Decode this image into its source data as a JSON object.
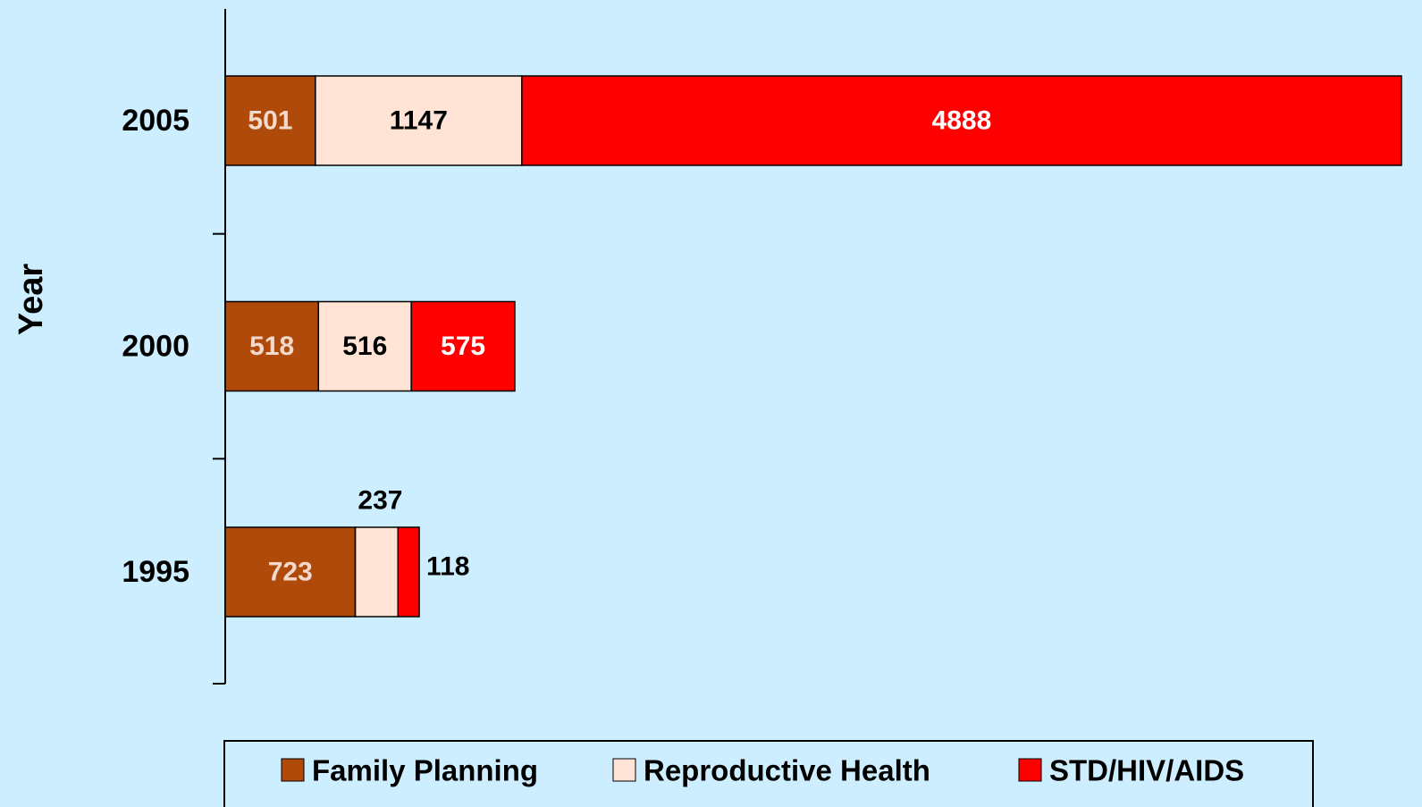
{
  "chart_data": {
    "type": "stacked_bar_horizontal",
    "y_label": "Year",
    "categories": [
      "2005",
      "2000",
      "1995"
    ],
    "series": [
      {
        "name": "Family Planning",
        "color": "#b04a0a",
        "values": [
          501,
          518,
          723
        ]
      },
      {
        "name": "Reproductive Health",
        "color": "#ffe4d6",
        "values": [
          1147,
          516,
          237
        ]
      },
      {
        "name": "STD/HIV/AIDS",
        "color": "#ff0000",
        "values": [
          4888,
          575,
          118
        ]
      }
    ],
    "legend": "bottom"
  }
}
